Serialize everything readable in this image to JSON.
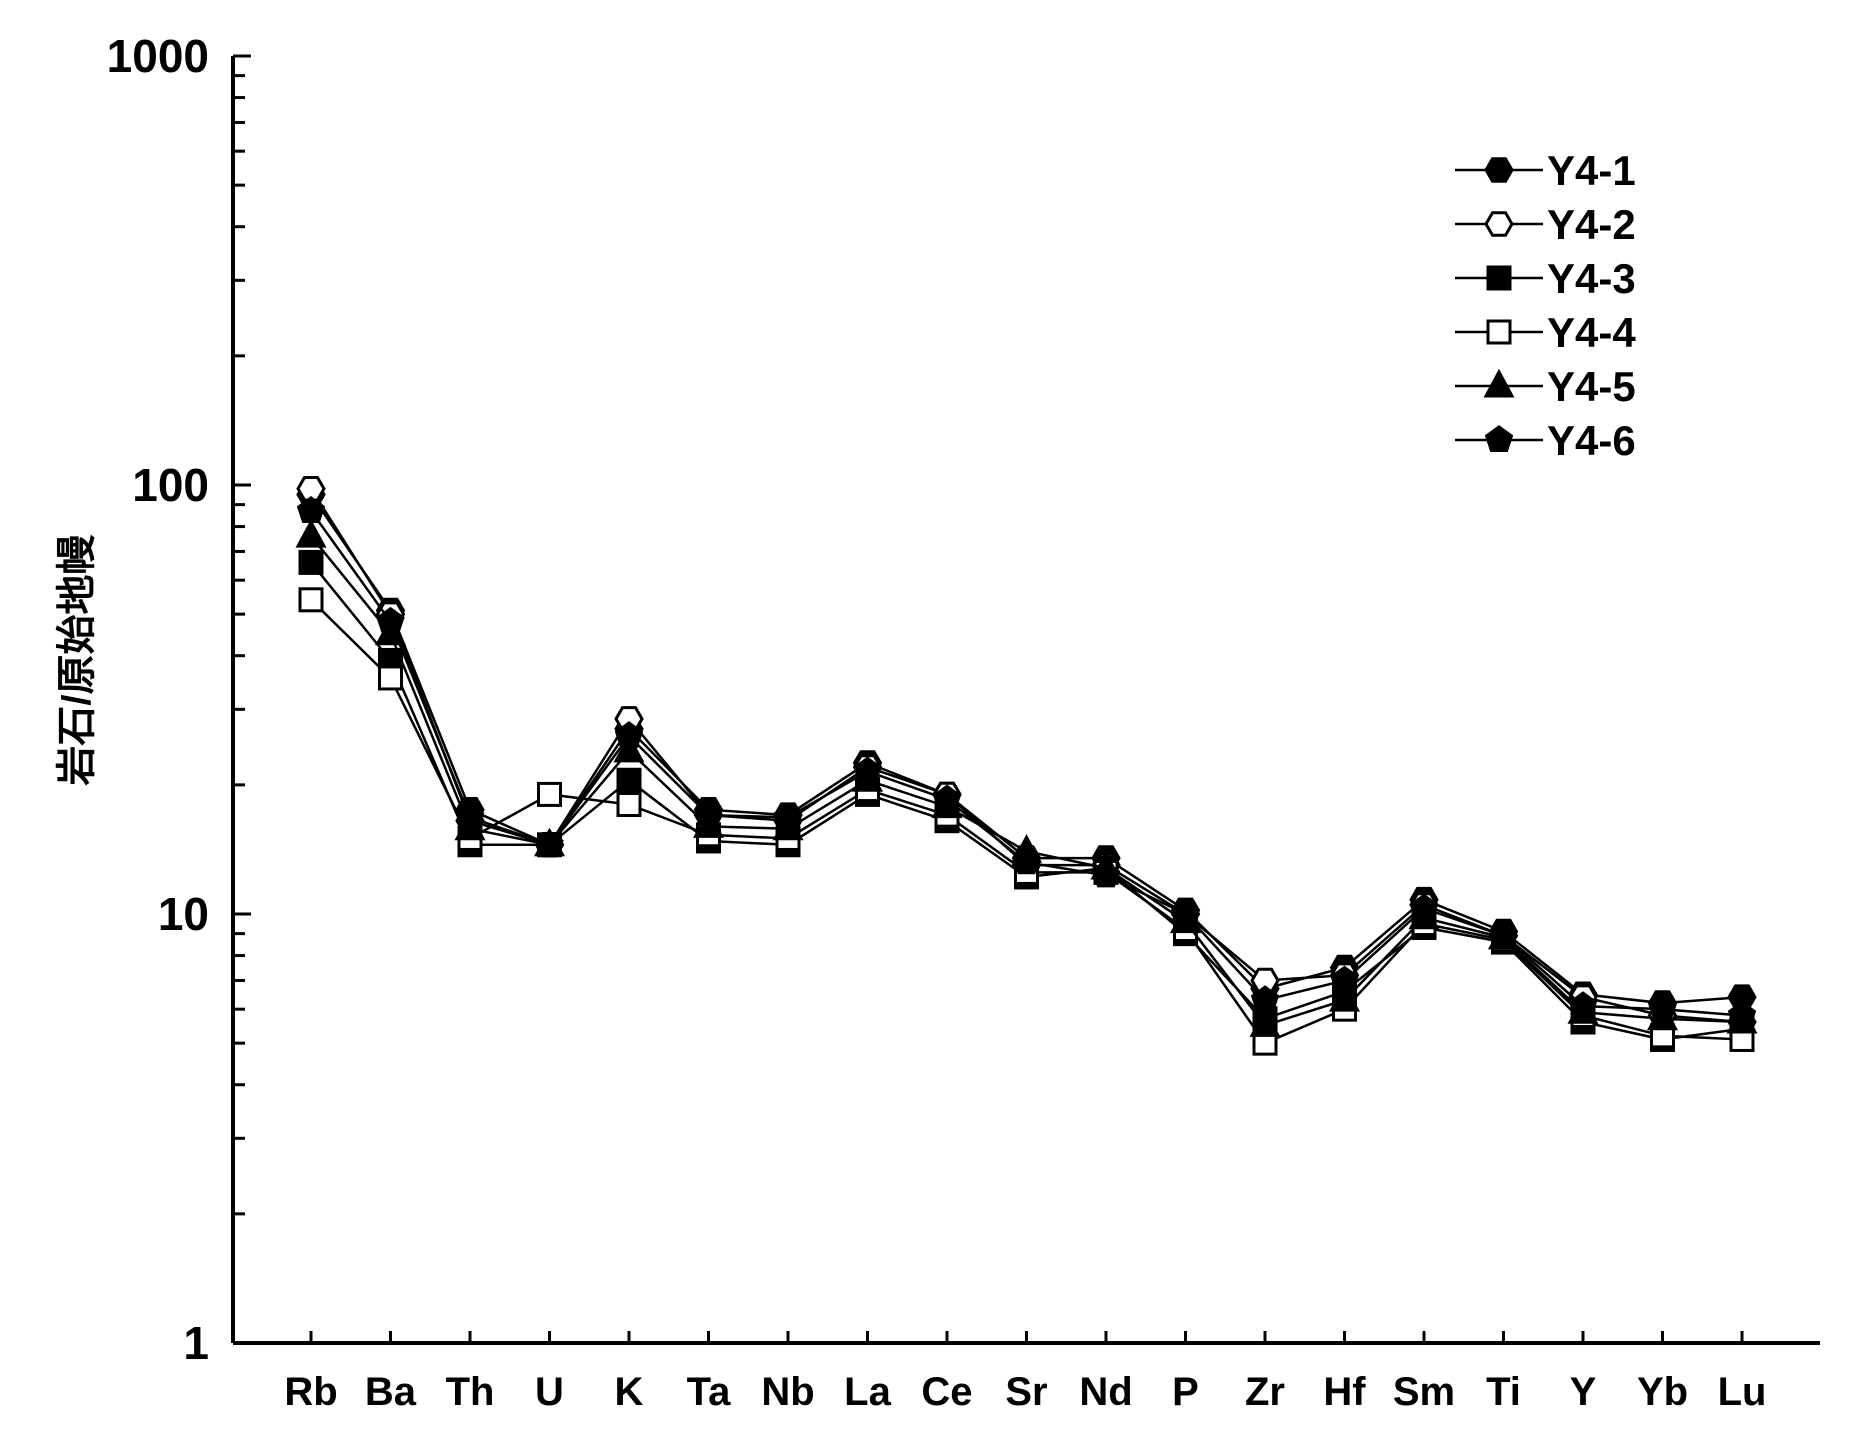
{
  "chart_data": {
    "type": "line",
    "title": "",
    "xlabel": "",
    "ylabel": "岩石/原始地幔",
    "yscale": "log",
    "ylim": [
      1,
      1000
    ],
    "yticks": [
      "1",
      "10",
      "100",
      "1000"
    ],
    "grid": false,
    "legend_position": "top-right",
    "categories": [
      "Rb",
      "Ba",
      "Th",
      "U",
      "K",
      "Ta",
      "Nb",
      "La",
      "Ce",
      "Sr",
      "Nd",
      "P",
      "Zr",
      "Hf",
      "Sm",
      "Ti",
      "Y",
      "Yb",
      "Lu"
    ],
    "series": [
      {
        "name": "Y4-1",
        "marker": "filled-hexagon",
        "values": [
          95,
          51,
          17.5,
          14.5,
          27,
          17.5,
          17,
          22.5,
          19,
          13.5,
          13.5,
          10.2,
          6.7,
          7.5,
          10.8,
          9.1,
          6.5,
          6.2,
          6.4
        ]
      },
      {
        "name": "Y4-2",
        "marker": "open-hexagon",
        "values": [
          98,
          50,
          16.5,
          14.5,
          28.5,
          17,
          16.5,
          22,
          19,
          13,
          13,
          10,
          7,
          7.2,
          10.5,
          8.9,
          6.4,
          5.8,
          5.6
        ]
      },
      {
        "name": "Y4-3",
        "marker": "filled-square",
        "values": [
          66,
          39,
          14.5,
          14.5,
          20.5,
          14.8,
          14.5,
          19,
          16.5,
          12.2,
          12.8,
          9,
          5.7,
          6.6,
          9.3,
          8.6,
          5.6,
          5.1,
          5.4
        ]
      },
      {
        "name": "Y4-4",
        "marker": "open-square",
        "values": [
          54,
          35.5,
          15,
          19,
          18,
          15.3,
          15,
          19.5,
          17,
          12.5,
          12.5,
          9.2,
          5,
          6,
          9.5,
          8.7,
          5.8,
          5.2,
          5.1
        ]
      },
      {
        "name": "Y4-5",
        "marker": "filled-triangle",
        "values": [
          76,
          45,
          15.8,
          14.5,
          24,
          16,
          15.8,
          20.5,
          17.8,
          14,
          12.8,
          9.6,
          5.5,
          6.3,
          9.8,
          8.8,
          5.9,
          5.7,
          5.6
        ]
      },
      {
        "name": "Y4-6",
        "marker": "filled-pentagon",
        "values": [
          87,
          48,
          16.8,
          14.5,
          26,
          17,
          16.8,
          21.5,
          18.5,
          13.2,
          12.3,
          10,
          6.3,
          7,
          10.3,
          8.9,
          6.1,
          6,
          5.8
        ]
      }
    ]
  }
}
